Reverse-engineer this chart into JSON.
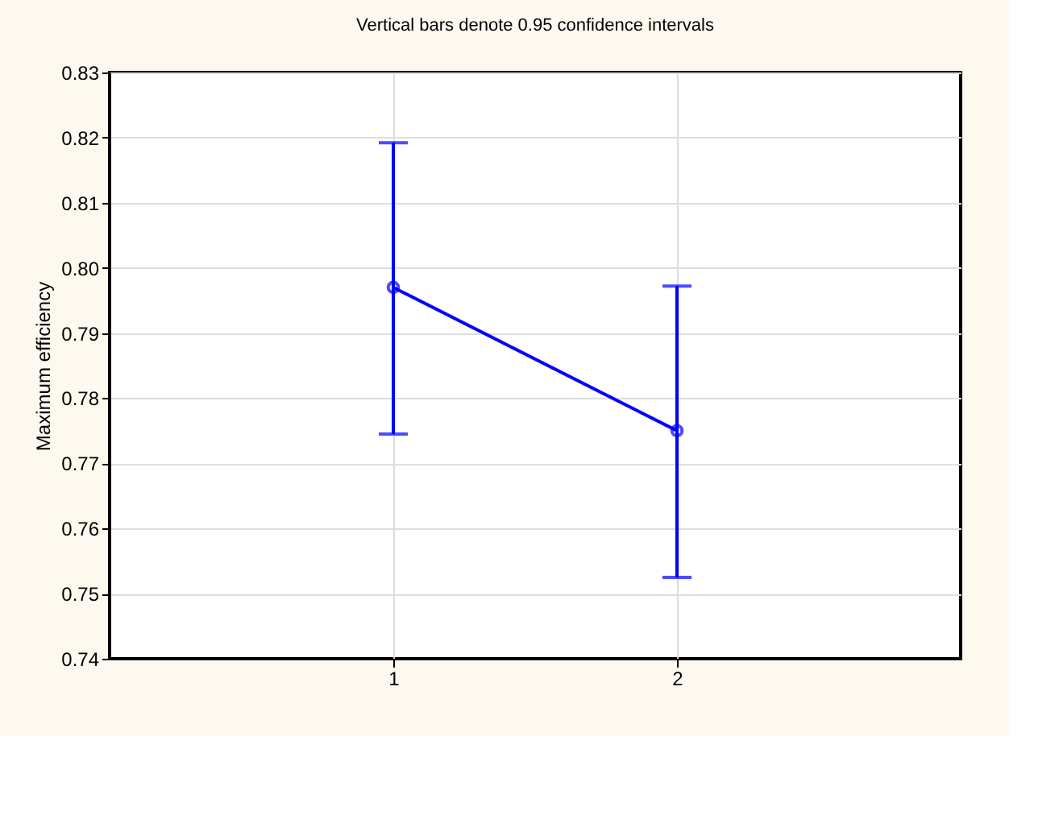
{
  "chart_data": {
    "type": "line",
    "title": "Vertical bars denote 0.95 confidence intervals",
    "ylabel": "Maximum efficiency",
    "x": [
      1,
      2
    ],
    "series": [
      {
        "color": "#0000ff",
        "values": [
          0.797,
          0.775
        ],
        "errors": [
          [
            0.7745,
            0.8192
          ],
          [
            0.7525,
            0.7972
          ]
        ]
      }
    ],
    "xlim": [
      0,
      3
    ],
    "xticks": [
      1,
      2
    ],
    "ylim": [
      0.74,
      0.83
    ],
    "yticks": [
      0.74,
      0.75,
      0.76,
      0.77,
      0.78,
      0.79,
      {
        "value": 0.8,
        "label": "0.80"
      },
      0.81,
      0.82,
      0.83
    ],
    "grid": true,
    "marker": "circle",
    "line_style": "solid"
  }
}
